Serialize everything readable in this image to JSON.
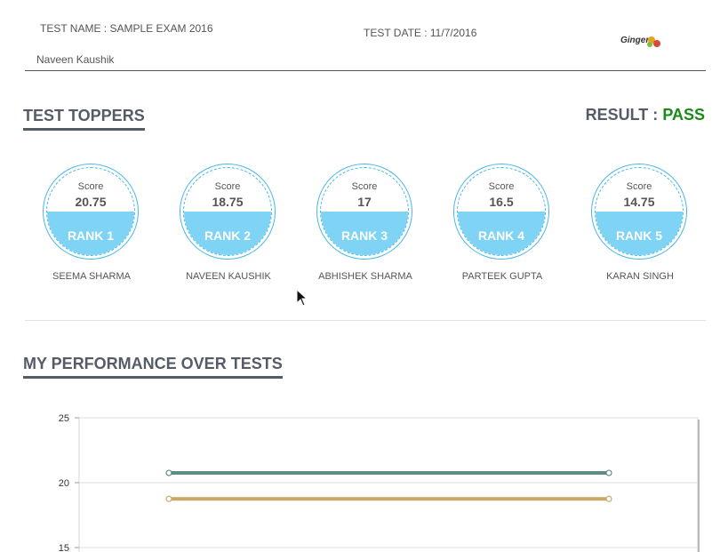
{
  "header": {
    "test_name": "TEST NAME : SAMPLE EXAM 2016",
    "test_date": "TEST DATE : 11/7/2016",
    "student_name": "Naveen Kaushik",
    "logo_text": "Ginger"
  },
  "toppers": {
    "title": "TEST TOPPERS",
    "result_label": "RESULT : ",
    "result_value": "PASS",
    "score_label": "Score",
    "items": [
      {
        "score": "20.75",
        "rank": "RANK 1",
        "name": "SEEMA SHARMA"
      },
      {
        "score": "18.75",
        "rank": "RANK 2",
        "name": "NAVEEN KAUSHIK"
      },
      {
        "score": "17",
        "rank": "RANK 3",
        "name": "ABHISHEK SHARMA"
      },
      {
        "score": "16.5",
        "rank": "RANK 4",
        "name": "PARTEEK GUPTA"
      },
      {
        "score": "14.75",
        "rank": "RANK 5",
        "name": "KARAN SINGH"
      }
    ]
  },
  "performance": {
    "title": "MY PERFORMANCE OVER TESTS"
  },
  "colors": {
    "accent": "#7fd3f5",
    "pass": "#1a8a1a",
    "series_teal": "#5f8a86",
    "series_gold": "#c9a865"
  },
  "chart_data": {
    "type": "line",
    "title": "",
    "xlabel": "",
    "ylabel": "",
    "ylim": [
      15,
      25
    ],
    "yticks": [
      "25",
      "20",
      "15"
    ],
    "x": [
      1,
      2
    ],
    "series": [
      {
        "values": [
          20.75,
          20.75
        ],
        "color": "#5f8a86"
      },
      {
        "values": [
          18.75,
          18.75
        ],
        "color": "#c9a865"
      }
    ],
    "grid": true
  }
}
